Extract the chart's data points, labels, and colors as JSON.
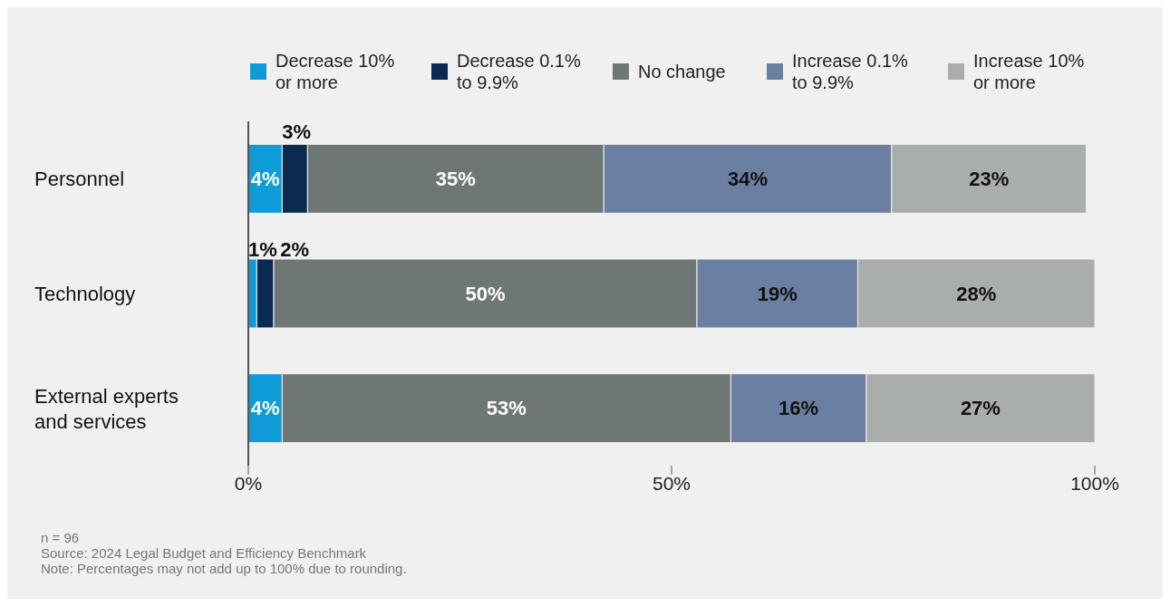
{
  "chart_data": {
    "type": "bar",
    "orientation": "horizontal",
    "stacked": true,
    "categories": [
      "Personnel",
      "Technology",
      "External experts and services"
    ],
    "series": [
      {
        "name": "Decrease 10% or more",
        "color": "#0e9bd8",
        "values": [
          4,
          1,
          4
        ],
        "value_labels": [
          "4%",
          "1%",
          "4%"
        ]
      },
      {
        "name": "Decrease 0.1% to 9.9%",
        "color": "#0b2a50",
        "values": [
          3,
          2,
          null
        ],
        "value_labels": [
          "3%",
          "2%",
          null
        ]
      },
      {
        "name": "No change",
        "color": "#6e7775",
        "values": [
          35,
          50,
          53
        ],
        "value_labels": [
          "35%",
          "50%",
          "53%"
        ]
      },
      {
        "name": "Increase 0.1% to 9.9%",
        "color": "#6a7fa1",
        "values": [
          34,
          19,
          16
        ],
        "value_labels": [
          "34%",
          "19%",
          "16%"
        ]
      },
      {
        "name": "Increase 10% or more",
        "color": "#a9aeac",
        "values": [
          23,
          28,
          27
        ],
        "value_labels": [
          "23%",
          "28%",
          "27%"
        ]
      }
    ],
    "xlim": [
      0,
      100
    ],
    "xticks": [
      {
        "value": 0,
        "label": "0%"
      },
      {
        "value": 50,
        "label": "50%"
      },
      {
        "value": 100,
        "label": "100%"
      }
    ],
    "grid": false,
    "legend": "top",
    "annotations": [
      "n = 96",
      "Source: 2024 Legal Budget and Efficiency Benchmark",
      "Note: Percentages may not add up to 100% due to rounding."
    ]
  }
}
